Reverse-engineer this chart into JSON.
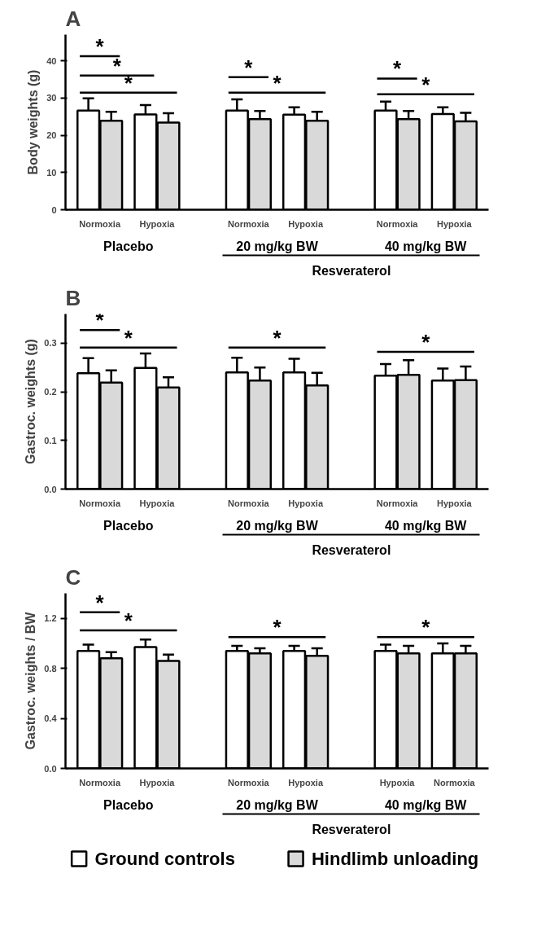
{
  "chart_data": [
    {
      "type": "bar",
      "title": "A",
      "ylabel": "Body weights (g)",
      "categories": [
        "Normoxia",
        "Hypoxia",
        "Normoxia",
        "Hypoxia",
        "Normoxia",
        "Hypoxia"
      ],
      "series": [
        {
          "color": "#ffffff",
          "values": [
            26.6,
            25.6,
            26.6,
            25.5,
            26.6,
            25.7
          ],
          "errors": [
            3.3,
            2.5,
            3.0,
            2.0,
            2.4,
            1.8
          ]
        },
        {
          "color": "#d9d9d9",
          "values": [
            23.9,
            23.4,
            24.3,
            23.9,
            24.3,
            23.7
          ],
          "errors": [
            2.4,
            2.5,
            2.2,
            2.4,
            2.2,
            2.3
          ]
        }
      ],
      "ylim": [
        0,
        47
      ],
      "yticks": [
        0,
        10,
        20,
        30,
        40
      ],
      "grid": false,
      "annotations": [
        "*",
        "*",
        "*",
        "*",
        "*",
        "*",
        "*",
        "Placebo",
        "20 mg/kg BW",
        "40 mg/kg BW",
        "Resveraterol"
      ]
    },
    {
      "type": "bar",
      "title": "B",
      "ylabel": "Gastroc. weights (g)",
      "categories": [
        "Normoxia",
        "Hypoxia",
        "Normoxia",
        "Hypoxia",
        "Normoxia",
        "Hypoxia"
      ],
      "series": [
        {
          "color": "#ffffff",
          "values": [
            0.238,
            0.249,
            0.24,
            0.24,
            0.233,
            0.223
          ],
          "errors": [
            0.031,
            0.03,
            0.03,
            0.028,
            0.024,
            0.025
          ]
        },
        {
          "color": "#d9d9d9",
          "values": [
            0.219,
            0.209,
            0.223,
            0.213,
            0.235,
            0.224
          ],
          "errors": [
            0.025,
            0.021,
            0.027,
            0.026,
            0.03,
            0.028
          ]
        }
      ],
      "ylim": [
        0,
        0.36
      ],
      "yticks": [
        {
          "value": 0,
          "label": "0.0"
        },
        0.1,
        0.2,
        0.3
      ],
      "grid": false,
      "annotations": [
        "*",
        "*",
        "*",
        "*",
        "Placebo",
        "20 mg/kg BW",
        "40 mg/kg BW",
        "Resveraterol"
      ]
    },
    {
      "type": "bar",
      "title": "C",
      "ylabel": "Gastroc. weights / BW",
      "categories": [
        "Normoxia",
        "Hypoxia",
        "Normoxia",
        "Hypoxia",
        "Hypoxia",
        "Normoxia"
      ],
      "series": [
        {
          "name": "Ground controls",
          "color": "#ffffff",
          "values": [
            0.94,
            0.97,
            0.94,
            0.94,
            0.94,
            0.92
          ],
          "errors": [
            0.05,
            0.06,
            0.04,
            0.04,
            0.05,
            0.08
          ]
        },
        {
          "name": "Hindlimb unloading",
          "color": "#d9d9d9",
          "values": [
            0.88,
            0.86,
            0.92,
            0.9,
            0.92,
            0.92
          ],
          "errors": [
            0.05,
            0.05,
            0.04,
            0.06,
            0.06,
            0.06
          ]
        }
      ],
      "ylim": [
        0,
        1.4
      ],
      "yticks": [
        {
          "value": 0,
          "label": "0.0"
        },
        {
          "value": 0.4,
          "label": "0.4"
        },
        {
          "value": 0.8,
          "label": "0.8"
        },
        {
          "value": 1.2,
          "label": "1.2"
        }
      ],
      "grid": false,
      "legend": "bottom",
      "annotations": [
        "*",
        "*",
        "*",
        "*",
        "Placebo",
        "20 mg/kg BW",
        "40 mg/kg BW",
        "Resveraterol"
      ]
    }
  ]
}
